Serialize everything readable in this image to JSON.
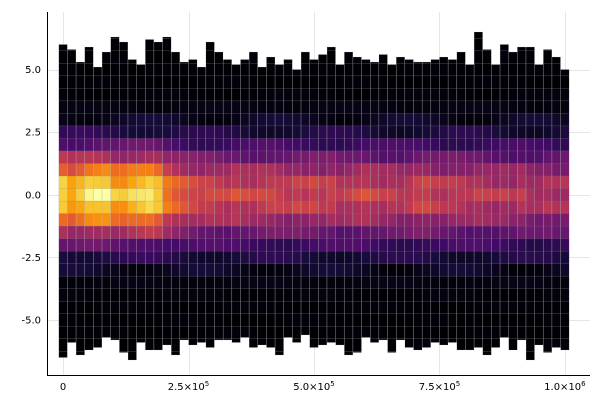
{
  "chart_data": {
    "type": "heatmap",
    "title": "",
    "xlabel": "",
    "ylabel": "",
    "xlim": [
      -30000,
      1050000
    ],
    "ylim": [
      -7.2,
      7.3
    ],
    "grid": true,
    "legend": "none",
    "colormap": "inferno",
    "n_columns": 59,
    "column_width": 16700,
    "x_range": [
      0,
      1000000
    ],
    "x_ticks": [
      {
        "value": 0,
        "label": "0",
        "exp": ""
      },
      {
        "value": 250000,
        "label": "2.5×10",
        "exp": "5"
      },
      {
        "value": 500000,
        "label": "5.0×10",
        "exp": "5"
      },
      {
        "value": 750000,
        "label": "7.5×10",
        "exp": "5"
      },
      {
        "value": 1000000,
        "label": "1.0×10",
        "exp": "6"
      }
    ],
    "y_ticks": [
      {
        "value": 5.0,
        "label": "5.0"
      },
      {
        "value": 2.5,
        "label": "2.5"
      },
      {
        "value": 0.0,
        "label": "0.0"
      },
      {
        "value": -2.5,
        "label": "-2.5"
      },
      {
        "value": -5.0,
        "label": "-5.0"
      }
    ],
    "column_top": [
      6.0,
      5.8,
      5.3,
      5.9,
      5.1,
      5.7,
      6.3,
      6.1,
      5.4,
      5.2,
      6.2,
      6.1,
      6.3,
      5.7,
      5.3,
      5.4,
      5.1,
      6.1,
      5.7,
      5.4,
      5.2,
      5.4,
      5.7,
      5.1,
      5.5,
      5.2,
      5.4,
      5.0,
      5.7,
      5.4,
      5.6,
      5.9,
      5.2,
      5.7,
      5.5,
      5.4,
      5.3,
      5.6,
      5.2,
      5.5,
      5.4,
      5.3,
      5.3,
      5.4,
      5.5,
      5.4,
      5.7,
      5.2,
      6.5,
      5.8,
      5.2,
      6.0,
      5.7,
      5.9,
      5.9,
      5.2,
      5.8,
      5.5,
      5.0
    ],
    "column_bottom": [
      -6.5,
      -5.9,
      -6.4,
      -6.2,
      -6.1,
      -5.7,
      -5.8,
      -6.3,
      -6.6,
      -5.9,
      -6.2,
      -6.2,
      -6.0,
      -6.4,
      -5.8,
      -6.0,
      -5.9,
      -6.1,
      -5.8,
      -5.8,
      -5.9,
      -5.7,
      -6.1,
      -6.0,
      -6.1,
      -6.4,
      -5.7,
      -5.9,
      -5.6,
      -6.1,
      -6.0,
      -5.9,
      -6.0,
      -6.4,
      -6.3,
      -5.7,
      -5.9,
      -5.8,
      -6.3,
      -5.8,
      -6.1,
      -6.2,
      -6.1,
      -5.9,
      -6.0,
      -5.9,
      -6.2,
      -6.2,
      -6.1,
      -6.4,
      -6.1,
      -5.7,
      -6.2,
      -5.8,
      -6.6,
      -6.0,
      -6.3,
      -6.1,
      -6.2
    ],
    "peak_intensity": [
      0.92,
      0.82,
      0.88,
      0.96,
      0.97,
      0.98,
      0.85,
      0.84,
      0.9,
      0.93,
      0.96,
      0.9,
      0.72,
      0.66,
      0.62,
      0.58,
      0.55,
      0.57,
      0.55,
      0.53,
      0.57,
      0.54,
      0.52,
      0.55,
      0.56,
      0.54,
      0.52,
      0.55,
      0.53,
      0.56,
      0.52,
      0.55,
      0.5,
      0.52,
      0.54,
      0.56,
      0.53,
      0.5,
      0.52,
      0.49,
      0.51,
      0.55,
      0.56,
      0.52,
      0.5,
      0.52,
      0.51,
      0.49,
      0.52,
      0.5,
      0.48,
      0.5,
      0.47,
      0.51,
      0.46,
      0.45,
      0.48,
      0.46,
      0.47
    ],
    "bin_edges": [
      -6.75,
      -6.25,
      -5.75,
      -5.25,
      -4.75,
      -4.25,
      -3.75,
      -3.25,
      -2.75,
      -2.25,
      -1.75,
      -1.25,
      -0.75,
      -0.25,
      0.25,
      0.75,
      1.25,
      1.75,
      2.25,
      2.75,
      3.25,
      3.75,
      4.25,
      4.75,
      5.25,
      5.75,
      6.25,
      6.75
    ]
  }
}
